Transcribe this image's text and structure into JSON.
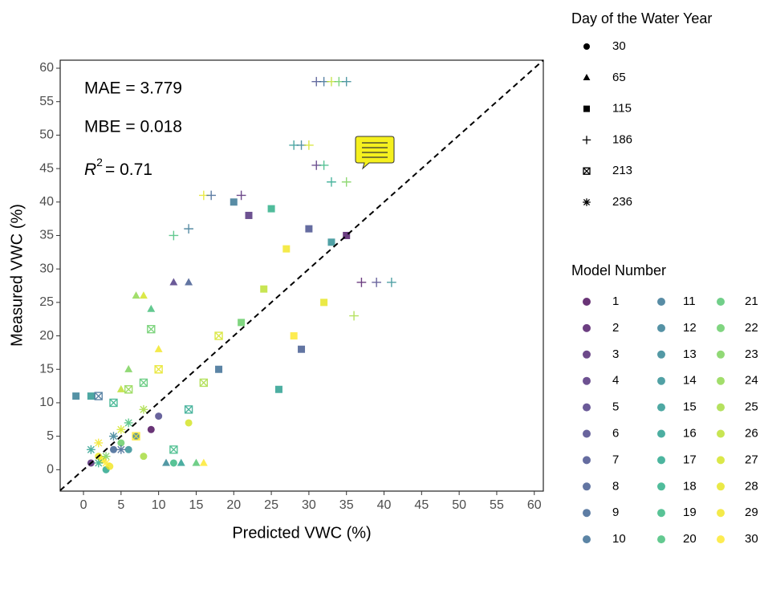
{
  "chart_data": {
    "type": "scatter",
    "xlabel": "Predicted VWC (%)",
    "ylabel": "Measured VWC (%)",
    "xlim": [
      -3.1,
      61.2
    ],
    "ylim": [
      -3.2,
      61.2
    ],
    "xticks": [
      0,
      5,
      10,
      15,
      20,
      25,
      30,
      35,
      40,
      45,
      50,
      55,
      60
    ],
    "yticks": [
      0,
      5,
      10,
      15,
      20,
      25,
      30,
      35,
      40,
      45,
      50,
      55,
      60
    ],
    "identity_line": true,
    "annotations": [
      "MAE = 3.779",
      "MBE = 0.018"
    ],
    "r2": {
      "symbol": "R",
      "power": "2",
      "text": "= 0.71"
    },
    "shape_legend_title": "Day of the Water Year",
    "color_legend_title": "Model Number",
    "models": [
      1,
      2,
      3,
      4,
      5,
      6,
      7,
      8,
      9,
      10,
      11,
      12,
      13,
      14,
      15,
      16,
      17,
      18,
      19,
      20,
      21,
      22,
      23,
      24,
      25,
      26,
      27,
      28,
      29,
      30
    ],
    "model_colors": [
      "#440154",
      "#470E61",
      "#481B6D",
      "#482576",
      "#46317E",
      "#433D84",
      "#3F4788",
      "#3B528B",
      "#365C8D",
      "#32658E",
      "#2E6F8E",
      "#2B778F",
      "#28808E",
      "#25898E",
      "#22928C",
      "#1F9A8A",
      "#1FA287",
      "#24AB82",
      "#2EB47C",
      "#3CBC74",
      "#4DC36B",
      "#60CA60",
      "#75D054",
      "#8BD646",
      "#A2DA37",
      "#BADE28",
      "#D2E21B",
      "#E5E419",
      "#F1E51D",
      "#FDE725"
    ],
    "series": [
      {
        "name": "30",
        "shape": "circle",
        "x": [
          1,
          2,
          3,
          4,
          2.5,
          5,
          7,
          8,
          10,
          12,
          14,
          6,
          3.5,
          9
        ],
        "y": [
          1,
          2,
          0,
          3,
          1.5,
          4,
          5,
          2,
          8,
          1,
          7,
          3,
          0.5,
          6
        ],
        "model": [
          3,
          28,
          17,
          9,
          30,
          22,
          12,
          25,
          6,
          19,
          27,
          14,
          29,
          1
        ]
      },
      {
        "name": "65",
        "shape": "triangle",
        "x": [
          7,
          8,
          9,
          11,
          13,
          15,
          16,
          12,
          14,
          10,
          6,
          5
        ],
        "y": [
          26,
          26,
          24,
          1,
          1,
          1,
          1,
          28,
          28,
          18,
          15,
          12
        ],
        "model": [
          24,
          27,
          20,
          13,
          16,
          21,
          30,
          5,
          8,
          29,
          23,
          26
        ]
      },
      {
        "name": "115",
        "shape": "square",
        "x": [
          20,
          22,
          25,
          27,
          30,
          33,
          35,
          24,
          28,
          21,
          18,
          26,
          32,
          29,
          -1,
          1
        ],
        "y": [
          40,
          38,
          39,
          33,
          36,
          34,
          35,
          27,
          20,
          22,
          15,
          12,
          25,
          18,
          11,
          11
        ],
        "model": [
          11,
          4,
          18,
          29,
          7,
          14,
          2,
          26,
          30,
          22,
          10,
          16,
          28,
          8,
          12,
          15
        ]
      },
      {
        "name": "186",
        "shape": "plus",
        "x": [
          31,
          32,
          33,
          34,
          35,
          28,
          29,
          30,
          31,
          32,
          16,
          17,
          21,
          37,
          39,
          41,
          12,
          14,
          36,
          33,
          35
        ],
        "y": [
          58,
          58,
          58,
          58,
          58,
          48.5,
          48.5,
          48.5,
          45.5,
          45.5,
          41,
          41,
          41,
          28,
          28,
          28,
          35,
          36,
          23,
          43,
          43
        ],
        "model": [
          7,
          10,
          26,
          22,
          13,
          15,
          12,
          27,
          4,
          19,
          28,
          9,
          3,
          2,
          6,
          14,
          20,
          11,
          25,
          17,
          23
        ]
      },
      {
        "name": "213",
        "shape": "square-cross",
        "x": [
          2,
          4,
          6,
          8,
          10,
          12,
          14,
          16,
          18,
          7,
          9
        ],
        "y": [
          11,
          10,
          12,
          13,
          15,
          3,
          9,
          13,
          20,
          5,
          21
        ],
        "model": [
          10,
          18,
          24,
          21,
          28,
          19,
          17,
          25,
          27,
          30,
          22
        ]
      },
      {
        "name": "236",
        "shape": "asterisk",
        "x": [
          1,
          2,
          3,
          4,
          5,
          6,
          3,
          5,
          8,
          2
        ],
        "y": [
          3,
          4,
          2,
          5,
          6,
          7,
          1,
          3,
          9,
          1
        ],
        "model": [
          16,
          29,
          23,
          12,
          27,
          20,
          30,
          9,
          25,
          18
        ]
      }
    ]
  }
}
